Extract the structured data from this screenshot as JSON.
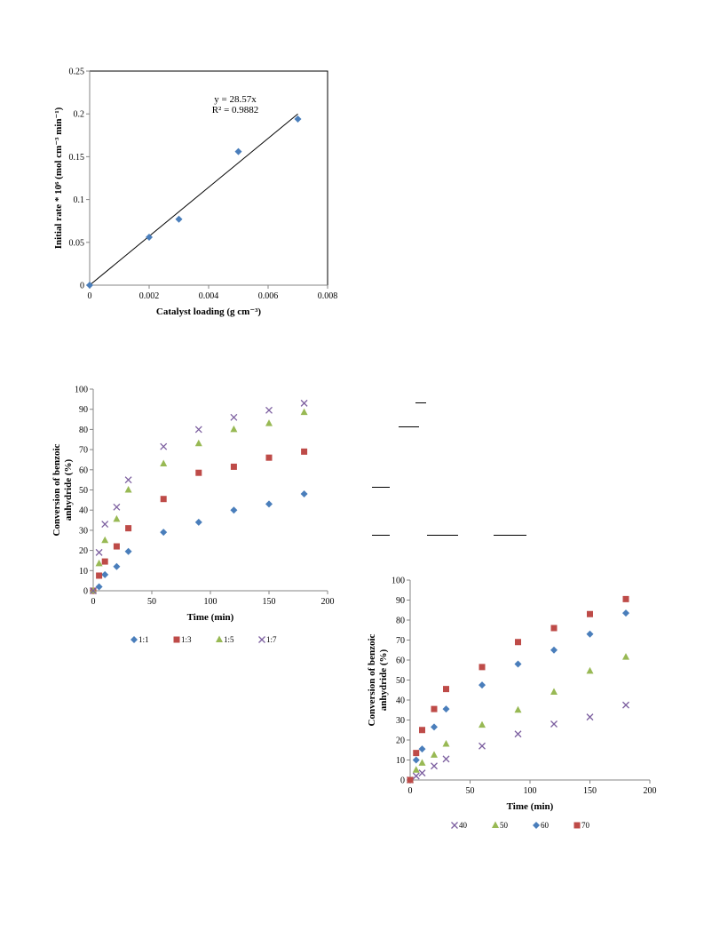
{
  "chart_data": [
    {
      "type": "scatter",
      "title": "",
      "xlabel": "Catalyst loading (g cm⁻³)",
      "ylabel": "Initial rate * 10⁶ (mol cm⁻³ min⁻¹)",
      "xlim": [
        0,
        0.008
      ],
      "ylim": [
        0,
        0.25
      ],
      "xticks": [
        "0",
        "0.002",
        "0.004",
        "0.006",
        "0.008"
      ],
      "yticks": [
        "0",
        "0.05",
        "0.1",
        "0.15",
        "0.2",
        "0.25"
      ],
      "grid": false,
      "series": [
        {
          "x": [
            0,
            0.002,
            0.003,
            0.005,
            0.007
          ],
          "y": [
            0,
            0.056,
            0.077,
            0.156,
            0.194
          ],
          "color": "#4a7ebb",
          "marker": "diamond"
        }
      ],
      "trendline": {
        "slope": 28.57,
        "x_range": [
          0,
          0.007
        ]
      },
      "annotations": [
        "y = 28.57x",
        "R² = 0.9882"
      ]
    },
    {
      "type": "scatter",
      "title": "",
      "xlabel": "Time (min)",
      "ylabel": "Conversion of benzoic anhydride (%)",
      "xlim": [
        0,
        200
      ],
      "ylim": [
        0,
        100
      ],
      "xticks": [
        "0",
        "50",
        "100",
        "150",
        "200"
      ],
      "yticks": [
        "0",
        "10",
        "20",
        "30",
        "40",
        "50",
        "60",
        "70",
        "80",
        "90",
        "100"
      ],
      "grid": false,
      "legend": "bottom",
      "x": [
        0,
        5,
        10,
        20,
        30,
        60,
        90,
        120,
        150,
        180
      ],
      "series": [
        {
          "name": "1:1",
          "marker": "diamond",
          "color": "#4a7ebb",
          "values": [
            0,
            2,
            8,
            12,
            19.5,
            29,
            34,
            40,
            43,
            48
          ]
        },
        {
          "name": "1:3",
          "marker": "square",
          "color": "#be4b48",
          "values": [
            0,
            7.5,
            14.5,
            22,
            31,
            45.5,
            58.5,
            61.5,
            66,
            69
          ]
        },
        {
          "name": "1:5",
          "marker": "triangle",
          "color": "#98b954",
          "values": [
            0,
            13.5,
            25,
            35.5,
            50,
            63,
            73,
            80,
            83,
            88.5
          ]
        },
        {
          "name": "1:7",
          "marker": "x",
          "color": "#7d60a0",
          "values": [
            0,
            19,
            33,
            41.5,
            55,
            71.5,
            80,
            86,
            89.5,
            93
          ]
        }
      ]
    },
    {
      "type": "scatter",
      "title": "",
      "xlabel": "Time (min)",
      "ylabel": "Conversion of benzoic anhydride (%)",
      "xlim": [
        0,
        200
      ],
      "ylim": [
        0,
        100
      ],
      "xticks": [
        "0",
        "50",
        "100",
        "150",
        "200"
      ],
      "yticks": [
        "0",
        "10",
        "20",
        "30",
        "40",
        "50",
        "60",
        "70",
        "80",
        "90",
        "100"
      ],
      "grid": false,
      "legend": "bottom",
      "x": [
        0,
        5,
        10,
        20,
        30,
        60,
        90,
        120,
        150,
        180
      ],
      "series": [
        {
          "name": "40",
          "marker": "x",
          "color": "#7d60a0",
          "values": [
            0,
            2,
            3.5,
            7,
            10.5,
            17,
            23,
            28,
            31.5,
            37.5
          ]
        },
        {
          "name": "50",
          "marker": "triangle",
          "color": "#98b954",
          "values": [
            0,
            5,
            8.5,
            12.5,
            18,
            27.5,
            35,
            44,
            54.5,
            61.5
          ]
        },
        {
          "name": "60",
          "marker": "diamond",
          "color": "#4a7ebb",
          "values": [
            0,
            10,
            15.5,
            26.5,
            35.5,
            47.5,
            58,
            65,
            73,
            83.5
          ]
        },
        {
          "name": "70",
          "marker": "square",
          "color": "#be4b48",
          "values": [
            0,
            13.5,
            25,
            35.5,
            45.5,
            56.5,
            69,
            76,
            83,
            90.5
          ]
        }
      ]
    }
  ]
}
